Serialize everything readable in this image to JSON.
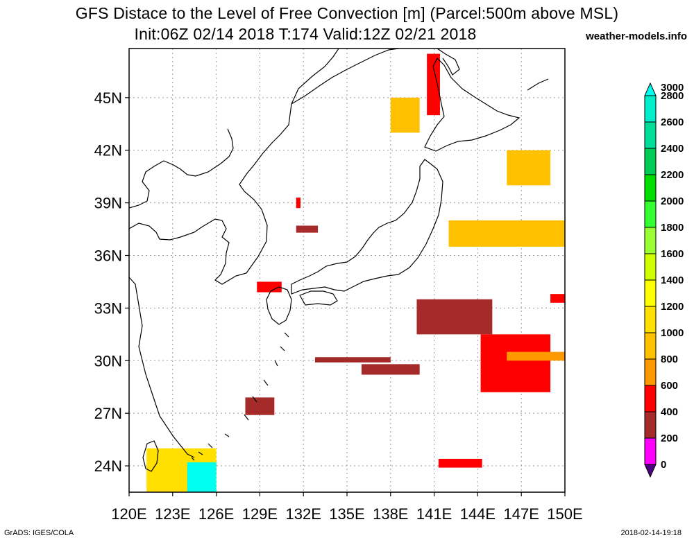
{
  "title_line1": "GFS Distace to the Level of Free Convection [m] (Parcel:500m above MSL)",
  "title_line2": "Init:06Z 02/14 2018 T:174 Valid:12Z 02/21 2018",
  "brand": "weather-models.info",
  "footer_left": "GrADS: IGES/COLA",
  "footer_right": "2018-02-14-19:18",
  "x_ticks": [
    "120E",
    "123E",
    "126E",
    "129E",
    "132E",
    "135E",
    "138E",
    "141E",
    "144E",
    "147E",
    "150E"
  ],
  "y_ticks": [
    "24N",
    "27N",
    "30N",
    "33N",
    "36N",
    "39N",
    "42N",
    "45N"
  ],
  "colorbar": {
    "labels": [
      "0",
      "200",
      "400",
      "600",
      "800",
      "1000",
      "1200",
      "1400",
      "1600",
      "1800",
      "2000",
      "2200",
      "2400",
      "2600",
      "2800",
      "3000"
    ],
    "colors": [
      "#4b0082",
      "#ff00ff",
      "#a52a2a",
      "#ff0000",
      "#ff9900",
      "#ffc000",
      "#ffe000",
      "#ffff00",
      "#d0ff00",
      "#99ff33",
      "#33ff33",
      "#00dd00",
      "#00cc55",
      "#00dd99",
      "#00eecc",
      "#00ffee"
    ]
  },
  "chart_data": {
    "type": "heatmap",
    "lon_range": [
      120,
      150
    ],
    "lat_range": [
      22.5,
      47.8
    ],
    "regions": [
      {
        "lon": [
          131.5,
          133.0
        ],
        "lat": [
          37.3,
          37.7
        ],
        "band": "400"
      },
      {
        "lon": [
          131.5,
          131.8
        ],
        "lat": [
          38.7,
          39.3
        ],
        "band": "600"
      },
      {
        "lon": [
          128.8,
          130.5
        ],
        "lat": [
          33.9,
          34.5
        ],
        "band": "600"
      },
      {
        "lon": [
          132.8,
          138.0
        ],
        "lat": [
          29.9,
          30.2
        ],
        "band": "400"
      },
      {
        "lon": [
          136.0,
          140.0
        ],
        "lat": [
          29.2,
          29.8
        ],
        "band": "400"
      },
      {
        "lon": [
          128.0,
          130.0
        ],
        "lat": [
          26.9,
          27.9
        ],
        "band": "400"
      },
      {
        "lon": [
          139.8,
          145.0
        ],
        "lat": [
          31.5,
          33.5
        ],
        "band": "400"
      },
      {
        "lon": [
          144.2,
          149.0
        ],
        "lat": [
          28.2,
          31.5
        ],
        "band": "600"
      },
      {
        "lon": [
          146.0,
          150.0
        ],
        "lat": [
          30.0,
          30.5
        ],
        "band": "800"
      },
      {
        "lon": [
          149.0,
          150.0
        ],
        "lat": [
          33.3,
          33.8
        ],
        "band": "600"
      },
      {
        "lon": [
          142.0,
          150.0
        ],
        "lat": [
          36.5,
          38.0
        ],
        "band": "1000"
      },
      {
        "lon": [
          146.0,
          149.0
        ],
        "lat": [
          40.0,
          42.0
        ],
        "band": "1000"
      },
      {
        "lon": [
          140.5,
          141.4
        ],
        "lat": [
          44.0,
          47.5
        ],
        "band": "600"
      },
      {
        "lon": [
          138.0,
          140.0
        ],
        "lat": [
          43.0,
          45.0
        ],
        "band": "1000"
      },
      {
        "lon": [
          141.3,
          144.3
        ],
        "lat": [
          23.9,
          24.4
        ],
        "band": "600"
      },
      {
        "lon": [
          125.2,
          126.0
        ],
        "lat": [
          23.5,
          24.3
        ],
        "band": "400"
      },
      {
        "lon": [
          121.2,
          126.0
        ],
        "lat": [
          22.5,
          25.0
        ],
        "band": "1200"
      },
      {
        "lon": [
          124.0,
          126.0
        ],
        "lat": [
          22.5,
          24.2
        ],
        "band": "3000"
      }
    ]
  }
}
